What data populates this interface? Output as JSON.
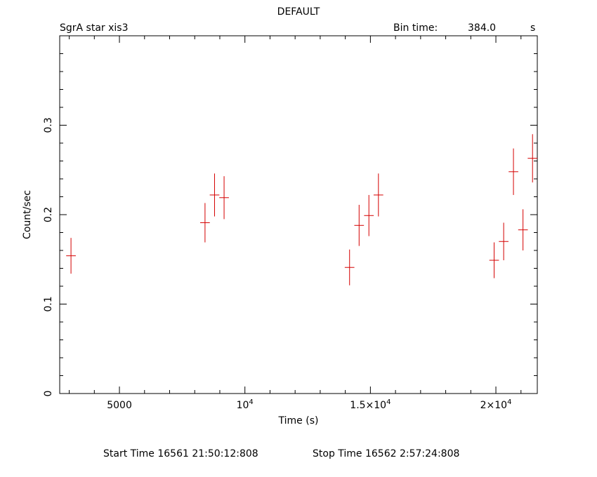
{
  "header": {
    "title": "DEFAULT",
    "source": "SgrA star xis3",
    "bin_label": "Bin time:",
    "bin_value": "384.0",
    "bin_unit": "s"
  },
  "footer": {
    "start_time": "Start Time 16561 21:50:12:808",
    "stop_time": "Stop Time 16562  2:57:24:808"
  },
  "chart_data": {
    "type": "scatter",
    "title": "DEFAULT",
    "xlabel": "Time (s)",
    "ylabel": "Count/sec",
    "xlim": [
      2620,
      21650
    ],
    "ylim": [
      0,
      0.4
    ],
    "grid": false,
    "x_ticks": [
      {
        "value": 5000,
        "label": "5000"
      },
      {
        "value": 10000,
        "label": "10",
        "sup": "4"
      },
      {
        "value": 15000,
        "label": "1.5×10",
        "sup": "4"
      },
      {
        "value": 20000,
        "label": "2×10",
        "sup": "4"
      }
    ],
    "y_ticks": [
      {
        "value": 0,
        "label": "0"
      },
      {
        "value": 0.1,
        "label": "0.1"
      },
      {
        "value": 0.2,
        "label": "0.2"
      },
      {
        "value": 0.3,
        "label": "0.3"
      }
    ],
    "series": [
      {
        "color": "#d40000",
        "points": [
          {
            "x": 3070,
            "xerr": 192,
            "y": 0.154,
            "yerr": 0.02
          },
          {
            "x": 8410,
            "xerr": 192,
            "y": 0.191,
            "yerr": 0.022
          },
          {
            "x": 8790,
            "xerr": 192,
            "y": 0.222,
            "yerr": 0.024
          },
          {
            "x": 9170,
            "xerr": 192,
            "y": 0.219,
            "yerr": 0.024
          },
          {
            "x": 14170,
            "xerr": 192,
            "y": 0.141,
            "yerr": 0.02
          },
          {
            "x": 14550,
            "xerr": 192,
            "y": 0.188,
            "yerr": 0.023
          },
          {
            "x": 14940,
            "xerr": 192,
            "y": 0.199,
            "yerr": 0.023
          },
          {
            "x": 15320,
            "xerr": 192,
            "y": 0.222,
            "yerr": 0.024
          },
          {
            "x": 19930,
            "xerr": 192,
            "y": 0.149,
            "yerr": 0.02
          },
          {
            "x": 20310,
            "xerr": 192,
            "y": 0.17,
            "yerr": 0.021
          },
          {
            "x": 20700,
            "xerr": 192,
            "y": 0.248,
            "yerr": 0.026
          },
          {
            "x": 21080,
            "xerr": 192,
            "y": 0.183,
            "yerr": 0.023
          },
          {
            "x": 21460,
            "xerr": 192,
            "y": 0.263,
            "yerr": 0.027
          }
        ]
      }
    ]
  }
}
